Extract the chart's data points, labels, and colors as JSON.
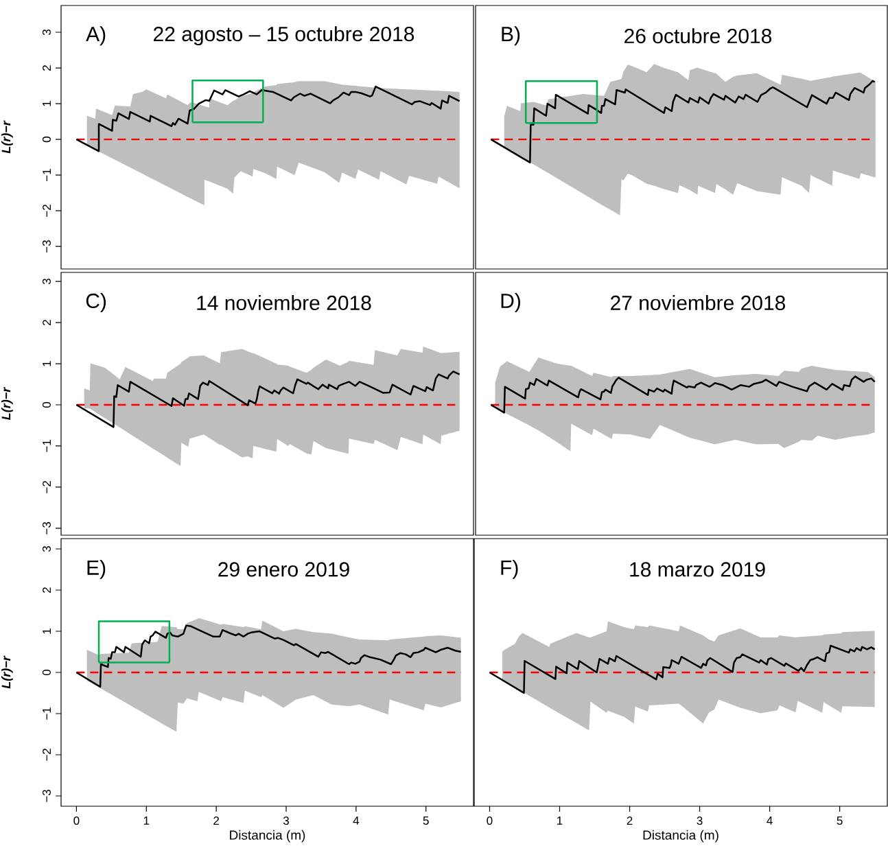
{
  "chart_data": [
    {
      "type": "line",
      "title": "A)",
      "subtitle": "22 agosto – 15 octubre 2018",
      "ylabel": "L(r)−r",
      "xlim": [
        -0.22,
        5.68
      ],
      "ylim": [
        -3.63,
        3.75
      ],
      "tick_labels": "y",
      "yticks": [
        {
          "value": -3,
          "label": "−3"
        },
        {
          "value": -2,
          "label": "−2"
        },
        {
          "value": -1,
          "label": "−1"
        },
        0,
        1,
        2,
        3
      ],
      "ref_lines": [
        {
          "axis": "y",
          "value": 0,
          "color": "#ff0000",
          "line_style": "dashed"
        }
      ],
      "series": [
        {
          "color": "#bebebe",
          "values": [
            null,
            null,
            null,
            null,
            null,
            null,
            null,
            null,
            null,
            null,
            null,
            null,
            null,
            null,
            null,
            null,
            null,
            null,
            null,
            null,
            null,
            null,
            null,
            null,
            null,
            null,
            null,
            null,
            null,
            null,
            null,
            null,
            null,
            null,
            null,
            null,
            null,
            null,
            null,
            null
          ],
          "x": [
            0.15,
            0.27,
            0.28,
            0.51,
            0.55,
            0.77,
            0.81,
            0.94,
            1.0,
            1.28,
            1.3,
            1.59,
            1.64,
            1.83,
            1.83,
            1.9,
            1.9,
            2.16,
            2.24,
            2.26,
            2.35,
            2.52,
            2.53,
            2.7,
            2.86,
            2.87,
            3.12,
            3.18,
            3.55,
            3.76,
            3.8,
            3.99,
            4.03,
            4.33,
            4.35,
            4.72,
            4.76,
            5.16,
            5.18,
            5.48
          ],
          "lower": [
            -0.17,
            -0.29,
            -0.3,
            -0.53,
            -0.57,
            -0.79,
            -0.83,
            -0.96,
            -1.02,
            -1.3,
            -1.32,
            -1.61,
            -1.66,
            -1.85,
            -1.13,
            -1.18,
            -1.18,
            -1.38,
            -1.52,
            -1.07,
            -0.89,
            -1.04,
            -0.83,
            -0.95,
            -1.11,
            -0.76,
            -1.0,
            -0.65,
            -0.92,
            -1.22,
            -0.93,
            -1.11,
            -0.85,
            -1.13,
            -0.89,
            -1.26,
            -1.02,
            -1.24,
            -1.04,
            -1.37
          ],
          "upper": [
            0.66,
            0.58,
            0.86,
            0.68,
            0.95,
            0.92,
            1.27,
            1.33,
            1.4,
            1.15,
            1.26,
            0.96,
            1.05,
            0.93,
            0.93,
            0.89,
            1.15,
            0.96,
            1.08,
            1.1,
            1.2,
            1.3,
            1.32,
            1.48,
            1.52,
            1.55,
            1.6,
            1.63,
            1.63,
            1.55,
            1.53,
            1.5,
            1.49,
            1.44,
            1.44,
            1.4,
            1.4,
            1.36,
            1.36,
            1.33
          ]
        },
        {
          "color": "#000000",
          "x": [
            0,
            0.32,
            0.32,
            0.51,
            0.52,
            0.57,
            0.6,
            0.75,
            0.77,
            1.05,
            1.06,
            1.36,
            1.38,
            1.41,
            1.46,
            1.59,
            1.62,
            1.68,
            1.75,
            1.85,
            1.9,
            1.97,
            2.09,
            2.13,
            2.32,
            2.39,
            2.48,
            2.58,
            2.65,
            2.81,
            3.07,
            3.11,
            3.2,
            3.26,
            3.35,
            3.63,
            3.67,
            3.75,
            3.82,
            3.9,
            3.93,
            3.99,
            4.08,
            4.2,
            4.23,
            4.28,
            4.8,
            4.84,
            4.91,
            5.06,
            5.08,
            5.21,
            5.23,
            5.31,
            5.33,
            5.48
          ],
          "values": [
            0,
            -0.33,
            0.43,
            0.24,
            0.55,
            0.52,
            0.73,
            0.57,
            0.77,
            0.5,
            0.66,
            0.37,
            0.46,
            0.41,
            0.58,
            0.44,
            0.81,
            0.85,
            1.0,
            1.1,
            1.08,
            1.37,
            1.26,
            1.38,
            1.2,
            1.26,
            1.35,
            1.26,
            1.38,
            1.33,
            1.09,
            1.18,
            1.28,
            1.22,
            1.28,
            1.01,
            1.09,
            1.18,
            1.31,
            1.24,
            1.33,
            1.33,
            1.29,
            1.2,
            1.23,
            1.48,
            0.98,
            1.05,
            1.07,
            0.96,
            1.02,
            0.86,
            1.09,
            1.02,
            1.22,
            1.07
          ]
        },
        {
          "color": "#00b050",
          "x": [
            1.66,
            1.66,
            2.67,
            2.67
          ],
          "values": [
            0.48,
            1.65,
            1.65,
            0.48
          ]
        },
        {
          "color": "#00b050",
          "x": [
            1.66,
            2.67
          ],
          "values": [
            0.48,
            0.48
          ]
        }
      ]
    },
    {
      "type": "line",
      "title": "B)",
      "subtitle": "26 octubre 2018",
      "xlim": [
        -0.22,
        5.68
      ],
      "ylim": [
        -3.63,
        3.75
      ],
      "tick_labels": false,
      "ref_lines": [
        {
          "axis": "y",
          "value": 0,
          "color": "#ff0000",
          "line_style": "dashed"
        }
      ],
      "series": [
        {
          "color": "#bebebe",
          "values": [
            null,
            null,
            null,
            null,
            null,
            null,
            null,
            null,
            null,
            null,
            null,
            null,
            null,
            null,
            null,
            null,
            null,
            null,
            null,
            null,
            null,
            null,
            null,
            null,
            null,
            null,
            null,
            null,
            null,
            null,
            null,
            null,
            null,
            null,
            null,
            null,
            null,
            null,
            null,
            null
          ],
          "x": [
            0.19,
            0.23,
            0.42,
            0.43,
            0.61,
            0.8,
            0.82,
            1.32,
            1.62,
            1.71,
            1.85,
            1.87,
            1.9,
            1.96,
            2.03,
            2.23,
            2.34,
            2.48,
            2.68,
            2.7,
            2.83,
            2.85,
            2.96,
            2.97,
            3.21,
            3.23,
            3.36,
            3.47,
            3.53,
            3.81,
            4.15,
            4.17,
            4.45,
            4.56,
            4.58,
            4.89,
            4.9,
            5.28,
            5.3,
            5.51
          ],
          "lower": [
            -0.22,
            -0.27,
            -0.48,
            -0.5,
            -0.7,
            -0.92,
            -0.94,
            -1.52,
            -1.87,
            -1.97,
            -2.13,
            -1.12,
            -1.15,
            -0.96,
            -1.01,
            -1.24,
            -1.3,
            -1.39,
            -1.5,
            -1.28,
            -1.4,
            -1.42,
            -1.55,
            -1.3,
            -1.5,
            -1.25,
            -1.4,
            -1.55,
            -1.23,
            -1.45,
            -1.55,
            -1.06,
            -1.3,
            -1.5,
            -1.0,
            -1.3,
            -0.87,
            -1.11,
            -0.95,
            -1.07
          ],
          "upper": [
            0.64,
            0.94,
            0.79,
            1.01,
            1.05,
            0.95,
            1.12,
            1.27,
            1.22,
            1.61,
            1.68,
            1.7,
            1.9,
            2.09,
            2.05,
            1.88,
            2.11,
            2.0,
            1.88,
            1.85,
            1.66,
            1.94,
            2.01,
            2.0,
            1.85,
            1.84,
            1.61,
            1.75,
            1.79,
            1.85,
            1.53,
            1.81,
            1.7,
            1.65,
            1.64,
            1.75,
            1.76,
            1.87,
            1.86,
            1.61
          ]
        },
        {
          "color": "#000000",
          "x": [
            0,
            0.56,
            0.57,
            0.61,
            0.62,
            0.79,
            0.81,
            0.92,
            0.93,
            1.39,
            1.4,
            1.51,
            1.58,
            1.59,
            1.62,
            1.64,
            1.78,
            1.8,
            1.92,
            1.93,
            2.48,
            2.5,
            2.59,
            2.61,
            2.65,
            2.83,
            2.85,
            2.97,
            2.99,
            3.12,
            3.15,
            3.19,
            3.34,
            3.36,
            3.5,
            3.55,
            3.62,
            3.65,
            3.82,
            3.87,
            3.94,
            4.0,
            4.04,
            4.53,
            4.55,
            4.6,
            4.81,
            4.85,
            4.9,
            4.94,
            5.13,
            5.15,
            5.21,
            5.34,
            5.36,
            5.43,
            5.47,
            5.5
          ],
          "values": [
            0,
            -0.65,
            0.41,
            0.41,
            0.87,
            0.66,
            1.0,
            0.87,
            1.25,
            0.72,
            0.96,
            0.83,
            0.74,
            0.94,
            0.94,
            1.13,
            0.98,
            1.38,
            1.31,
            1.4,
            0.74,
            0.9,
            0.79,
            1.05,
            1.25,
            1.03,
            1.16,
            1.03,
            1.18,
            1.0,
            1.16,
            1.27,
            1.11,
            1.22,
            1.03,
            1.2,
            1.13,
            1.25,
            1.05,
            1.24,
            1.31,
            1.42,
            1.46,
            0.9,
            1.0,
            1.24,
            1.0,
            1.16,
            1.16,
            1.31,
            1.1,
            1.27,
            1.44,
            1.31,
            1.44,
            1.55,
            1.64,
            1.61
          ]
        },
        {
          "color": "#00b050",
          "x": [
            0.5,
            0.5,
            1.52,
            1.52
          ],
          "values": [
            0.46,
            1.63,
            1.63,
            0.46
          ]
        },
        {
          "color": "#00b050",
          "x": [
            0.5,
            1.52
          ],
          "values": [
            0.46,
            0.46
          ]
        }
      ]
    },
    {
      "type": "line",
      "title": "C)",
      "subtitle": "14 noviembre 2018",
      "ylabel": "L(r)−r",
      "xlim": [
        -0.22,
        5.68
      ],
      "ylim": [
        -3.17,
        3.22
      ],
      "tick_labels": "y",
      "yticks": [
        {
          "value": -3,
          "label": "−3"
        },
        {
          "value": -2,
          "label": "−2"
        },
        {
          "value": -1,
          "label": "−1"
        },
        0,
        1,
        2,
        3
      ],
      "ref_lines": [
        {
          "axis": "y",
          "value": 0,
          "color": "#ff0000",
          "line_style": "dashed"
        }
      ],
      "series": [
        {
          "color": "#bebebe",
          "values": [
            null,
            null,
            null,
            null,
            null,
            null,
            null,
            null,
            null,
            null,
            null,
            null,
            null,
            null,
            null,
            null,
            null,
            null,
            null,
            null,
            null,
            null,
            null,
            null,
            null,
            null,
            null,
            null,
            null,
            null,
            null,
            null,
            null,
            null,
            null,
            null,
            null,
            null,
            null,
            null,
            null
          ],
          "x": [
            0.11,
            0.19,
            0.2,
            0.41,
            0.62,
            0.7,
            1.09,
            1.11,
            1.28,
            1.3,
            1.49,
            1.5,
            1.6,
            1.62,
            1.82,
            2.05,
            2.07,
            2.37,
            2.45,
            2.52,
            2.53,
            2.86,
            2.87,
            3.03,
            3.05,
            3.29,
            3.36,
            3.39,
            3.57,
            3.77,
            3.89,
            3.9,
            4.25,
            4.27,
            4.59,
            4.64,
            4.95,
            4.96,
            5.21,
            5.22,
            5.48
          ],
          "lower": [
            -0.08,
            -0.09,
            -0.1,
            -0.33,
            -0.55,
            -0.64,
            -1.06,
            -1.08,
            -1.26,
            -1.29,
            -1.49,
            -0.92,
            -1.02,
            -0.82,
            -0.72,
            -0.97,
            -0.97,
            -1.28,
            -1.25,
            -1.3,
            -1.0,
            -1.14,
            -0.83,
            -1.0,
            -0.95,
            -1.18,
            -1.21,
            -0.88,
            -1.05,
            -1.14,
            -1.19,
            -0.82,
            -0.95,
            -0.85,
            -1.1,
            -0.78,
            -0.96,
            -0.72,
            -0.96,
            -0.75,
            -0.63
          ],
          "upper": [
            0.4,
            0.35,
            1.01,
            0.9,
            0.62,
            0.92,
            0.58,
            0.64,
            0.64,
            0.78,
            1.0,
            1.04,
            1.15,
            1.18,
            1.2,
            1.01,
            1.28,
            1.36,
            1.3,
            1.25,
            1.26,
            1.0,
            0.98,
            0.95,
            0.93,
            0.78,
            0.85,
            0.9,
            1.1,
            0.95,
            1.05,
            1.07,
            0.97,
            1.33,
            1.2,
            1.36,
            1.27,
            1.42,
            1.26,
            1.26,
            1.29
          ]
        },
        {
          "color": "#000000",
          "x": [
            0,
            0.53,
            0.54,
            0.57,
            0.59,
            0.75,
            0.77,
            1.36,
            1.38,
            1.54,
            1.56,
            1.59,
            1.61,
            1.74,
            1.77,
            1.81,
            1.88,
            1.9,
            2.45,
            2.47,
            2.56,
            2.58,
            2.6,
            2.62,
            2.8,
            2.83,
            2.9,
            2.92,
            2.96,
            3.1,
            3.13,
            3.16,
            3.29,
            3.31,
            3.46,
            3.52,
            3.6,
            3.61,
            3.73,
            3.75,
            3.82,
            3.9,
            3.99,
            4.05,
            4.18,
            4.39,
            4.48,
            4.52,
            4.78,
            4.82,
            4.99,
            5.01,
            5.1,
            5.14,
            5.18,
            5.31,
            5.33,
            5.39,
            5.48
          ],
          "values": [
            0,
            -0.54,
            0.21,
            0.19,
            0.48,
            0.32,
            0.56,
            -0.03,
            0.16,
            -0.02,
            0.14,
            0.14,
            0.28,
            0.14,
            0.46,
            0.54,
            0.48,
            0.58,
            -0.01,
            0.11,
            0.03,
            0.14,
            0.33,
            0.45,
            0.28,
            0.35,
            0.27,
            0.35,
            0.42,
            0.28,
            0.48,
            0.62,
            0.51,
            0.54,
            0.38,
            0.49,
            0.4,
            0.49,
            0.38,
            0.46,
            0.51,
            0.56,
            0.46,
            0.56,
            0.46,
            0.29,
            0.3,
            0.49,
            0.25,
            0.46,
            0.33,
            0.43,
            0.35,
            0.64,
            0.74,
            0.64,
            0.71,
            0.81,
            0.74
          ]
        }
      ]
    },
    {
      "type": "line",
      "title": "D)",
      "subtitle": "27 noviembre 2018",
      "xlim": [
        -0.22,
        5.68
      ],
      "ylim": [
        -3.17,
        3.22
      ],
      "tick_labels": false,
      "ref_lines": [
        {
          "axis": "y",
          "value": 0,
          "color": "#ff0000",
          "line_style": "dashed"
        }
      ],
      "series": [
        {
          "color": "#bebebe",
          "values": [
            null,
            null,
            null,
            null,
            null,
            null,
            null,
            null,
            null,
            null,
            null,
            null,
            null,
            null,
            null,
            null,
            null,
            null,
            null,
            null,
            null,
            null,
            null,
            null,
            null,
            null,
            null,
            null,
            null
          ],
          "x": [
            0.06,
            0.13,
            0.23,
            0.55,
            0.68,
            0.95,
            1.14,
            1.15,
            1.45,
            1.47,
            1.73,
            1.75,
            2.0,
            2.28,
            2.42,
            2.85,
            3.21,
            3.5,
            3.8,
            4.12,
            4.2,
            4.41,
            4.45,
            4.6,
            4.68,
            4.93,
            5.15,
            5.4,
            5.5
          ],
          "lower": [
            -0.07,
            -0.12,
            -0.22,
            -0.5,
            -0.62,
            -0.91,
            -1.13,
            -0.46,
            -0.74,
            -0.58,
            -0.83,
            -0.7,
            -0.72,
            -0.83,
            -0.49,
            -0.8,
            -0.96,
            -0.85,
            -0.96,
            -0.95,
            -1.05,
            -0.9,
            -0.85,
            -0.87,
            -0.75,
            -0.85,
            -0.78,
            -0.72,
            -0.67
          ],
          "upper": [
            0.54,
            0.93,
            1.06,
            0.8,
            1.15,
            1.0,
            0.95,
            0.95,
            0.7,
            0.78,
            0.67,
            0.7,
            0.7,
            0.72,
            0.74,
            0.87,
            0.67,
            0.72,
            0.75,
            0.7,
            0.83,
            0.8,
            0.88,
            0.95,
            0.92,
            0.85,
            0.82,
            0.8,
            0.67
          ]
        },
        {
          "color": "#000000",
          "x": [
            0,
            0.19,
            0.2,
            0.49,
            0.5,
            0.54,
            0.56,
            0.62,
            0.65,
            0.81,
            0.83,
            1.25,
            1.27,
            1.29,
            1.57,
            1.59,
            1.62,
            1.64,
            1.72,
            1.74,
            1.77,
            1.79,
            1.83,
            2.25,
            2.26,
            2.34,
            2.38,
            2.47,
            2.49,
            2.59,
            2.6,
            2.62,
            2.81,
            2.83,
            2.92,
            2.94,
            3.01,
            3.13,
            3.17,
            3.21,
            3.32,
            3.45,
            3.58,
            3.7,
            3.77,
            3.89,
            3.94,
            4.09,
            4.13,
            4.32,
            4.53,
            4.56,
            4.64,
            4.81,
            4.89,
            5.04,
            5.06,
            5.14,
            5.17,
            5.22,
            5.34,
            5.38,
            5.45,
            5.5
          ],
          "values": [
            0,
            -0.19,
            0.44,
            0.15,
            0.38,
            0.4,
            0.54,
            0.48,
            0.63,
            0.47,
            0.59,
            0.18,
            0.32,
            0.38,
            0.13,
            0.31,
            0.32,
            0.37,
            0.29,
            0.45,
            0.53,
            0.59,
            0.66,
            0.24,
            0.37,
            0.32,
            0.4,
            0.32,
            0.37,
            0.27,
            0.43,
            0.59,
            0.42,
            0.45,
            0.42,
            0.48,
            0.54,
            0.44,
            0.48,
            0.53,
            0.48,
            0.37,
            0.48,
            0.44,
            0.51,
            0.56,
            0.61,
            0.46,
            0.56,
            0.44,
            0.33,
            0.45,
            0.54,
            0.37,
            0.51,
            0.36,
            0.48,
            0.45,
            0.61,
            0.69,
            0.56,
            0.61,
            0.64,
            0.56
          ]
        }
      ]
    },
    {
      "type": "line",
      "title": "E)",
      "subtitle": "29 enero 2019",
      "xlabel": "Distancia (m)",
      "ylabel": "L(r)−r",
      "xlim": [
        -0.22,
        5.68
      ],
      "ylim": [
        -3.25,
        3.25
      ],
      "xticks": [
        0,
        1,
        2,
        3,
        4,
        5
      ],
      "yticks": [
        {
          "value": -3,
          "label": "−3"
        },
        {
          "value": -2,
          "label": "−2"
        },
        {
          "value": -1,
          "label": "−1"
        },
        0,
        1,
        2,
        3
      ],
      "ref_lines": [
        {
          "axis": "y",
          "value": 0,
          "color": "#ff0000",
          "line_style": "dashed"
        }
      ],
      "series": [
        {
          "color": "#bebebe",
          "values": [
            null,
            null,
            null,
            null,
            null,
            null,
            null,
            null,
            null,
            null,
            null,
            null,
            null,
            null,
            null,
            null,
            null,
            null,
            null,
            null,
            null,
            null,
            null,
            null,
            null,
            null,
            null,
            null,
            null,
            null,
            null
          ],
          "x": [
            0.15,
            0.32,
            0.35,
            0.75,
            0.79,
            1.16,
            1.22,
            1.43,
            1.45,
            1.53,
            1.58,
            1.73,
            1.75,
            2.07,
            2.09,
            2.39,
            2.41,
            2.64,
            2.66,
            2.96,
            3.14,
            3.39,
            3.65,
            3.9,
            4.05,
            4.46,
            4.48,
            4.97,
            4.99,
            5.21,
            5.5
          ],
          "lower": [
            -0.2,
            -0.36,
            -0.39,
            -0.78,
            -0.82,
            -1.18,
            -1.24,
            -1.44,
            -0.73,
            -0.76,
            -0.63,
            -0.7,
            -0.47,
            -0.7,
            -0.6,
            -0.74,
            -0.44,
            -0.6,
            -0.55,
            -0.86,
            -0.66,
            -0.55,
            -0.78,
            -0.82,
            -0.78,
            -1.02,
            -0.66,
            -0.92,
            -0.76,
            -0.85,
            -0.7
          ],
          "upper": [
            0.55,
            0.42,
            0.45,
            0.48,
            0.71,
            0.74,
            1.13,
            1.1,
            1.05,
            1.05,
            1.2,
            1.3,
            1.32,
            1.16,
            1.18,
            1.1,
            1.12,
            1.05,
            1.26,
            1.0,
            1.06,
            0.98,
            0.94,
            0.85,
            0.8,
            0.78,
            0.8,
            0.87,
            0.88,
            0.9,
            0.84
          ]
        },
        {
          "color": "#000000",
          "x": [
            0,
            0.34,
            0.35,
            0.45,
            0.46,
            0.49,
            0.51,
            0.55,
            0.57,
            0.68,
            0.7,
            0.92,
            0.94,
            0.98,
            1.04,
            1.06,
            1.09,
            1.13,
            1.28,
            1.3,
            1.34,
            1.37,
            1.45,
            1.53,
            1.57,
            1.64,
            1.83,
            1.96,
            2.05,
            2.09,
            2.2,
            2.28,
            2.32,
            2.39,
            2.45,
            2.5,
            2.62,
            2.84,
            2.88,
            2.96,
            3.11,
            3.14,
            3.46,
            3.5,
            3.56,
            3.6,
            3.63,
            3.9,
            3.93,
            3.99,
            4.05,
            4.07,
            4.12,
            4.2,
            4.35,
            4.5,
            4.54,
            4.57,
            4.63,
            4.71,
            4.78,
            4.82,
            4.89,
            4.97,
            4.99,
            5.14,
            5.21,
            5.31,
            5.42,
            5.5
          ],
          "values": [
            0,
            -0.35,
            0.2,
            0.13,
            0.35,
            0.33,
            0.49,
            0.49,
            0.62,
            0.49,
            0.62,
            0.38,
            0.68,
            0.78,
            0.71,
            0.87,
            0.9,
            0.99,
            0.84,
            0.94,
            0.97,
            0.9,
            0.87,
            0.94,
            1.14,
            1.12,
            0.97,
            0.87,
            0.87,
            1.03,
            0.95,
            0.9,
            0.94,
            0.87,
            0.94,
            0.97,
            1.0,
            0.82,
            0.84,
            0.79,
            0.66,
            0.69,
            0.38,
            0.49,
            0.47,
            0.5,
            0.47,
            0.2,
            0.24,
            0.21,
            0.26,
            0.35,
            0.42,
            0.37,
            0.31,
            0.2,
            0.31,
            0.41,
            0.47,
            0.44,
            0.37,
            0.47,
            0.49,
            0.55,
            0.6,
            0.49,
            0.55,
            0.6,
            0.53,
            0.5
          ]
        },
        {
          "color": "#00b050",
          "x": [
            0.32,
            0.32,
            1.33,
            1.33
          ],
          "values": [
            0.24,
            1.24,
            1.24,
            0.24
          ]
        },
        {
          "color": "#00b050",
          "x": [
            0.32,
            1.33
          ],
          "values": [
            0.24,
            0.24
          ]
        }
      ]
    },
    {
      "type": "line",
      "title": "F)",
      "subtitle": "18 marzo 2019",
      "xlabel": "Distancia (m)",
      "xlim": [
        -0.22,
        5.68
      ],
      "ylim": [
        -3.25,
        3.25
      ],
      "tick_labels": "x",
      "xticks": [
        0,
        1,
        2,
        3,
        4,
        5
      ],
      "ref_lines": [
        {
          "axis": "y",
          "value": 0,
          "color": "#ff0000",
          "line_style": "dashed"
        }
      ],
      "series": [
        {
          "color": "#bebebe",
          "values": [
            null,
            null,
            null,
            null,
            null,
            null,
            null,
            null,
            null,
            null,
            null,
            null,
            null,
            null,
            null,
            null,
            null,
            null,
            null,
            null,
            null,
            null,
            null,
            null,
            null,
            null,
            null,
            null,
            null,
            null,
            null,
            null,
            null,
            null
          ],
          "x": [
            0.18,
            0.24,
            0.36,
            0.42,
            0.47,
            0.85,
            0.87,
            1.24,
            1.42,
            1.44,
            1.67,
            1.69,
            1.92,
            2.06,
            2.08,
            2.26,
            2.28,
            2.7,
            2.72,
            3.05,
            3.13,
            3.21,
            3.27,
            3.58,
            3.87,
            4.11,
            4.14,
            4.37,
            4.4,
            4.75,
            4.77,
            5.02,
            5.04,
            5.5
          ],
          "lower": [
            -0.18,
            -0.24,
            -0.36,
            -0.42,
            -0.47,
            -0.85,
            -0.87,
            -1.23,
            -1.41,
            -0.71,
            -0.98,
            -0.93,
            -1.08,
            -1.24,
            -0.83,
            -0.95,
            -0.8,
            -0.76,
            -0.78,
            -1.24,
            -0.98,
            -0.9,
            -0.66,
            -0.86,
            -0.99,
            -0.92,
            -0.8,
            -0.97,
            -0.69,
            -0.98,
            -0.72,
            -0.98,
            -0.82,
            -0.84
          ],
          "upper": [
            0.51,
            0.58,
            0.69,
            0.88,
            0.96,
            0.62,
            0.7,
            0.96,
            0.85,
            0.85,
            1.0,
            1.24,
            1.1,
            1.05,
            1.14,
            1.1,
            1.14,
            1.0,
            1.14,
            0.9,
            0.8,
            0.75,
            0.9,
            1.07,
            0.85,
            0.85,
            0.9,
            0.85,
            0.86,
            0.9,
            0.92,
            0.95,
            0.98,
            1.01
          ]
        },
        {
          "color": "#000000",
          "x": [
            0,
            0.49,
            0.5,
            0.94,
            0.95,
            1.1,
            1.11,
            1.26,
            1.28,
            1.53,
            1.57,
            1.69,
            1.71,
            1.79,
            1.81,
            2.38,
            2.4,
            2.47,
            2.48,
            2.57,
            2.59,
            2.6,
            2.7,
            2.74,
            3.02,
            3.05,
            3.09,
            3.11,
            3.15,
            3.47,
            3.49,
            3.53,
            3.58,
            3.61,
            3.85,
            3.87,
            3.96,
            3.98,
            4.02,
            4.21,
            4.23,
            4.41,
            4.45,
            4.49,
            4.53,
            4.58,
            4.62,
            4.68,
            4.79,
            4.81,
            4.85,
            4.87,
            5.13,
            5.15,
            5.21,
            5.24,
            5.3,
            5.32,
            5.39,
            5.45,
            5.5
          ],
          "values": [
            0,
            -0.5,
            0.28,
            -0.16,
            0.14,
            -0.02,
            0.24,
            0.08,
            0.28,
            0,
            0.33,
            0.21,
            0.35,
            0.27,
            0.4,
            -0.17,
            -0.03,
            -0.12,
            0.13,
            0.11,
            0.19,
            0.3,
            0.21,
            0.38,
            0.11,
            0.21,
            0.17,
            0.29,
            0.35,
            0.01,
            0.24,
            0.35,
            0.37,
            0.44,
            0.24,
            0.3,
            0.19,
            0.32,
            0.35,
            0.16,
            0.22,
            0.04,
            0.11,
            0.03,
            0.17,
            0.3,
            0.32,
            0.37,
            0.27,
            0.46,
            0.49,
            0.65,
            0.48,
            0.56,
            0.51,
            0.59,
            0.53,
            0.62,
            0.56,
            0.61,
            0.56
          ]
        }
      ]
    }
  ]
}
